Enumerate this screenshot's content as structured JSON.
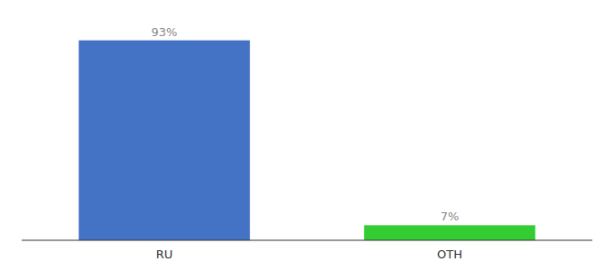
{
  "chart_data": {
    "type": "bar",
    "categories": [
      "RU",
      "OTH"
    ],
    "values": [
      93,
      7
    ],
    "value_labels": [
      "93%",
      "7%"
    ],
    "colors": [
      "#4472c4",
      "#33cc33"
    ],
    "ylim": [
      0,
      100
    ],
    "data_labels": true,
    "tick_labels": "x",
    "grid": false
  }
}
